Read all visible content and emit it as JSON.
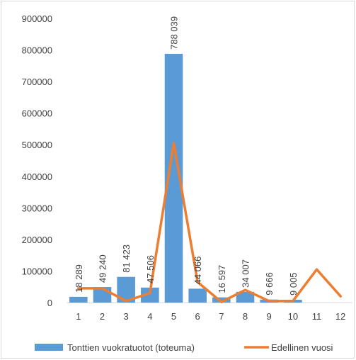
{
  "chart_data": {
    "type": "bar",
    "categories": [
      "1",
      "2",
      "3",
      "4",
      "5",
      "6",
      "7",
      "8",
      "9",
      "10",
      "11",
      "12"
    ],
    "ylim": [
      0,
      900000
    ],
    "yticks": [
      "0",
      "100000",
      "200000",
      "300000",
      "400000",
      "500000",
      "600000",
      "700000",
      "800000",
      "900000"
    ],
    "grid": false,
    "legend_position": "bottom",
    "series": [
      {
        "name": "Tonttien vuokratuotot (toteuma)",
        "type": "bar",
        "color": "#5b9bd5",
        "values": [
          18289,
          49240,
          81423,
          47506,
          788039,
          44066,
          16597,
          34007,
          9666,
          9005,
          null,
          null
        ],
        "labels": [
          "18 289",
          "49 240",
          "81 423",
          "47 506",
          "788 039",
          "44 066",
          "16 597",
          "34 007",
          "9 666",
          "9 005",
          "",
          ""
        ]
      },
      {
        "name": "Edellinen vuosi",
        "type": "line",
        "color": "#ed7d31",
        "values": [
          45000,
          45000,
          5000,
          30000,
          505000,
          65000,
          2000,
          40000,
          5000,
          5000,
          105000,
          20000
        ]
      }
    ]
  }
}
